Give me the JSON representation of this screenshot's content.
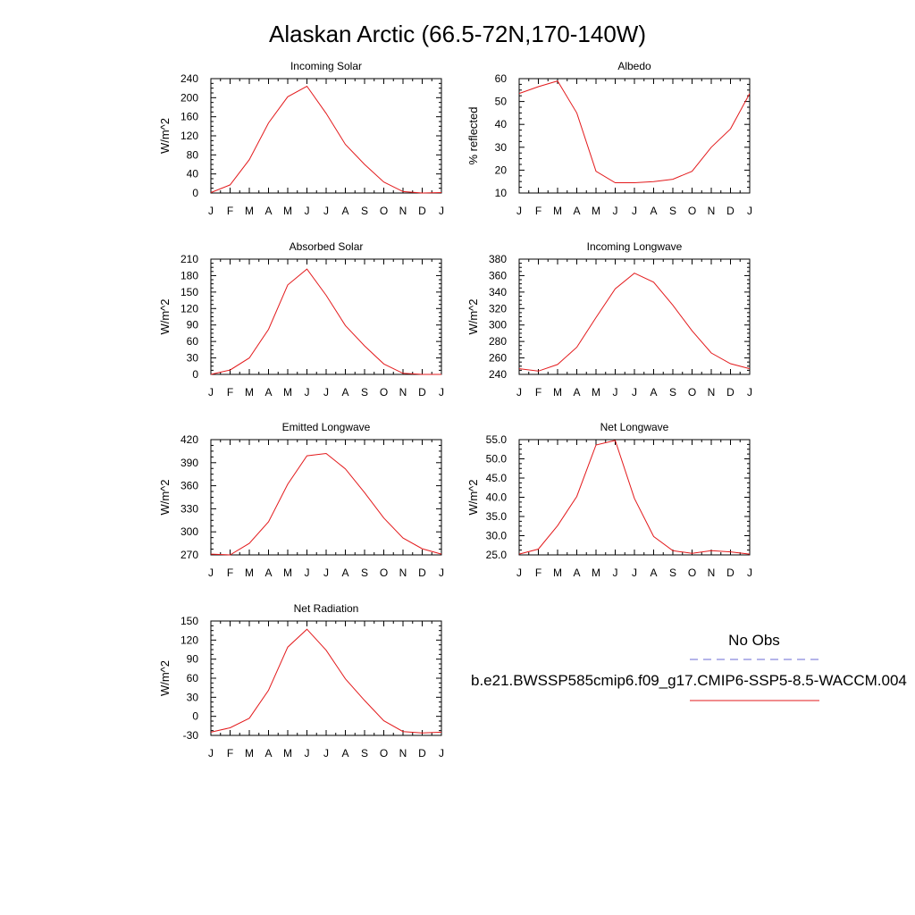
{
  "title": "Alaskan Arctic (66.5-72N,170-140W)",
  "months": [
    "J",
    "F",
    "M",
    "A",
    "M",
    "J",
    "J",
    "A",
    "S",
    "O",
    "N",
    "D",
    "J"
  ],
  "legend": {
    "obs_label": "No Obs",
    "model_label": "b.e21.BWSSP585cmip6.f09_g17.CMIP6-SSP5-8.5-WACCM.004",
    "obs_color": "#6b6bd6",
    "model_color": "#e31a1c"
  },
  "chart_data": [
    {
      "type": "line",
      "title": "Incoming Solar",
      "ylabel": "W/m^2",
      "ylim": [
        0,
        240
      ],
      "yticks": [
        0,
        40,
        80,
        120,
        160,
        200,
        240
      ],
      "ytick_labels": [
        "0",
        "40",
        "80",
        "120",
        "160",
        "200",
        "240"
      ],
      "series": [
        {
          "values": [
            1,
            17,
            70,
            147,
            202,
            224,
            167,
            102,
            60,
            23,
            3,
            0,
            1
          ]
        }
      ]
    },
    {
      "type": "line",
      "title": "Albedo",
      "ylabel": "% reflected",
      "ylim": [
        10,
        60
      ],
      "yticks": [
        10,
        20,
        30,
        40,
        50,
        60
      ],
      "ytick_labels": [
        "10",
        "20",
        "30",
        "40",
        "50",
        "60"
      ],
      "series": [
        {
          "values": [
            53.5,
            56.5,
            59,
            45,
            19.5,
            14.5,
            14.5,
            15,
            16,
            19.5,
            30,
            38,
            53.5
          ]
        }
      ]
    },
    {
      "type": "line",
      "title": "Absorbed Solar",
      "ylabel": "W/m^2",
      "ylim": [
        0,
        210
      ],
      "yticks": [
        0,
        30,
        60,
        90,
        120,
        150,
        180,
        210
      ],
      "ytick_labels": [
        "0",
        "30",
        "60",
        "90",
        "120",
        "150",
        "180",
        "210"
      ],
      "series": [
        {
          "values": [
            0,
            8,
            30,
            82,
            163,
            192,
            144,
            89,
            52,
            19,
            2,
            0,
            0
          ]
        }
      ]
    },
    {
      "type": "line",
      "title": "Incoming Longwave",
      "ylabel": "W/m^2",
      "ylim": [
        240,
        380
      ],
      "yticks": [
        240,
        260,
        280,
        300,
        320,
        340,
        360,
        380
      ],
      "ytick_labels": [
        "240",
        "260",
        "280",
        "300",
        "320",
        "340",
        "360",
        "380"
      ],
      "series": [
        {
          "values": [
            247,
            244,
            252,
            273,
            309,
            344,
            363,
            352,
            324,
            293,
            266,
            253,
            247
          ]
        }
      ]
    },
    {
      "type": "line",
      "title": "Emitted Longwave",
      "ylabel": "W/m^2",
      "ylim": [
        270,
        420
      ],
      "yticks": [
        270,
        300,
        330,
        360,
        390,
        420
      ],
      "ytick_labels": [
        "270",
        "300",
        "330",
        "360",
        "390",
        "420"
      ],
      "series": [
        {
          "values": [
            271,
            270,
            285,
            313,
            362,
            399,
            402,
            382,
            351,
            318,
            292,
            278,
            271
          ]
        }
      ]
    },
    {
      "type": "line",
      "title": "Net Longwave",
      "ylabel": "W/m^2",
      "ylim": [
        25,
        55
      ],
      "yticks": [
        25,
        30,
        35,
        40,
        45,
        50,
        55
      ],
      "ytick_labels": [
        "25.0",
        "30.0",
        "35.0",
        "40.0",
        "45.0",
        "50.0",
        "55.0"
      ],
      "series": [
        {
          "values": [
            25.2,
            26.5,
            32.6,
            40.2,
            53.6,
            54.8,
            39.7,
            29.8,
            26.1,
            25.4,
            26.1,
            25.8,
            25.2
          ]
        }
      ]
    },
    {
      "type": "line",
      "title": "Net Radiation",
      "ylabel": "W/m^2",
      "ylim": [
        -30,
        150
      ],
      "yticks": [
        -30,
        0,
        30,
        60,
        90,
        120,
        150
      ],
      "ytick_labels": [
        "-30",
        "0",
        "30",
        "60",
        "90",
        "120",
        "150"
      ],
      "series": [
        {
          "values": [
            -25,
            -18,
            -3,
            41,
            109,
            137,
            104,
            59,
            25,
            -7,
            -24,
            -26,
            -25
          ]
        }
      ]
    }
  ]
}
